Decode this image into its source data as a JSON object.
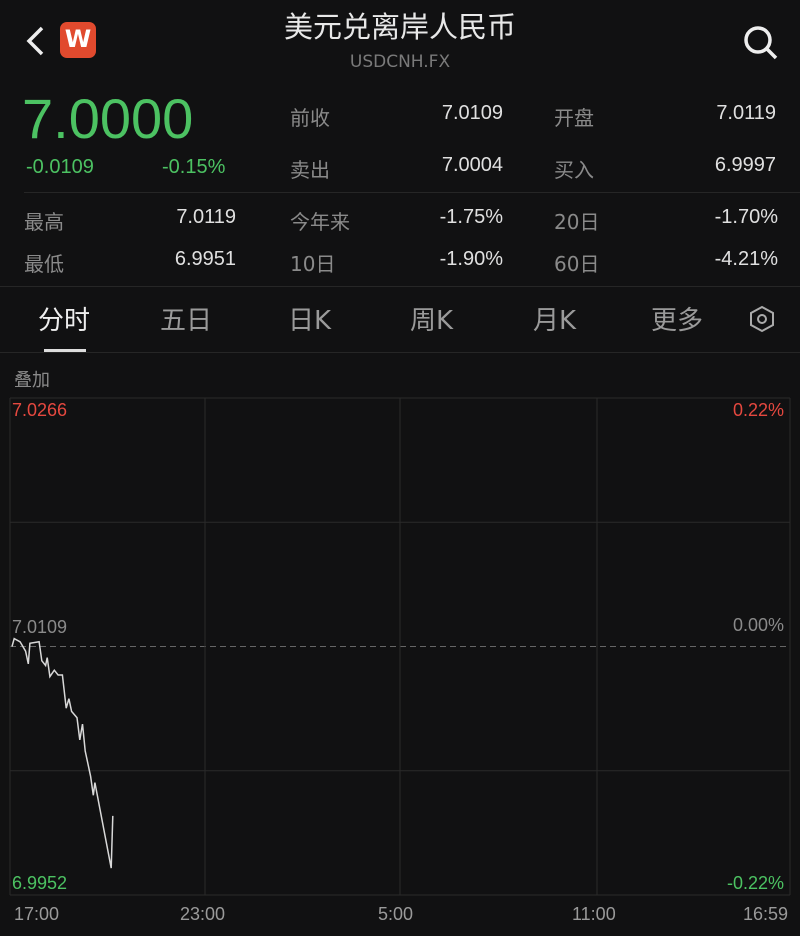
{
  "header": {
    "title": "美元兑离岸人民币",
    "symbol": "USDCNH.FX",
    "logo_letter": "W",
    "back_icon": "chevron-left-icon",
    "search_icon": "search-icon"
  },
  "quote": {
    "price": "7.0000",
    "change": "-0.0109",
    "change_pct": "-0.15%",
    "color_down": "#4cc262",
    "color_up": "#e5483f"
  },
  "stats": [
    {
      "label": "前收",
      "value": "7.0109"
    },
    {
      "label": "开盘",
      "value": "7.0119"
    },
    {
      "label": "卖出",
      "value": "7.0004"
    },
    {
      "label": "买入",
      "value": "6.9997"
    },
    {
      "label": "最高",
      "value": "7.0119"
    },
    {
      "label": "今年来",
      "value": "-1.75%"
    },
    {
      "label": "20日",
      "value": "-1.70%"
    },
    {
      "label": "最低",
      "value": "6.9951"
    },
    {
      "label": "10日",
      "value": "-1.90%"
    },
    {
      "label": "60日",
      "value": "-4.21%"
    }
  ],
  "tabs": [
    {
      "label": "分时",
      "active": true
    },
    {
      "label": "五日"
    },
    {
      "label": "日K"
    },
    {
      "label": "周K"
    },
    {
      "label": "月K"
    },
    {
      "label": "更多"
    }
  ],
  "settings_icon": "hexagon-settings-icon",
  "overlay_label": "叠加",
  "chart_data": {
    "type": "line",
    "ylim": [
      6.9952,
      7.0266
    ],
    "y_labels_left": {
      "top": "7.0266",
      "mid": "7.0109",
      "bottom": "6.9952"
    },
    "y_labels_right": {
      "top": "0.22%",
      "mid": "0.00%",
      "bottom": "-0.22%"
    },
    "x_ticks": [
      "17:00",
      "23:00",
      "5:00",
      "11:00",
      "16:59"
    ],
    "baseline": 7.0109,
    "grid": true,
    "points": [
      [
        "17:00",
        7.0109
      ],
      [
        "17:04",
        7.0114
      ],
      [
        "17:15",
        7.0112
      ],
      [
        "17:25",
        7.0106
      ],
      [
        "17:30",
        7.0098
      ],
      [
        "17:33",
        7.0111
      ],
      [
        "17:50",
        7.0112
      ],
      [
        "17:55",
        7.01
      ],
      [
        "18:02",
        7.0097
      ],
      [
        "18:05",
        7.0102
      ],
      [
        "18:10",
        7.009
      ],
      [
        "18:18",
        7.0094
      ],
      [
        "18:25",
        7.0091
      ],
      [
        "18:33",
        7.0091
      ],
      [
        "18:40",
        7.007
      ],
      [
        "18:45",
        7.0076
      ],
      [
        "18:50",
        7.0068
      ],
      [
        "19:00",
        7.0064
      ],
      [
        "19:05",
        7.005
      ],
      [
        "19:10",
        7.006
      ],
      [
        "19:15",
        7.0043
      ],
      [
        "19:20",
        7.0035
      ],
      [
        "19:25",
        7.0027
      ],
      [
        "19:30",
        7.0015
      ],
      [
        "19:33",
        7.0023
      ],
      [
        "20:03",
        6.9969
      ],
      [
        "20:06",
        7.0002
      ]
    ]
  }
}
